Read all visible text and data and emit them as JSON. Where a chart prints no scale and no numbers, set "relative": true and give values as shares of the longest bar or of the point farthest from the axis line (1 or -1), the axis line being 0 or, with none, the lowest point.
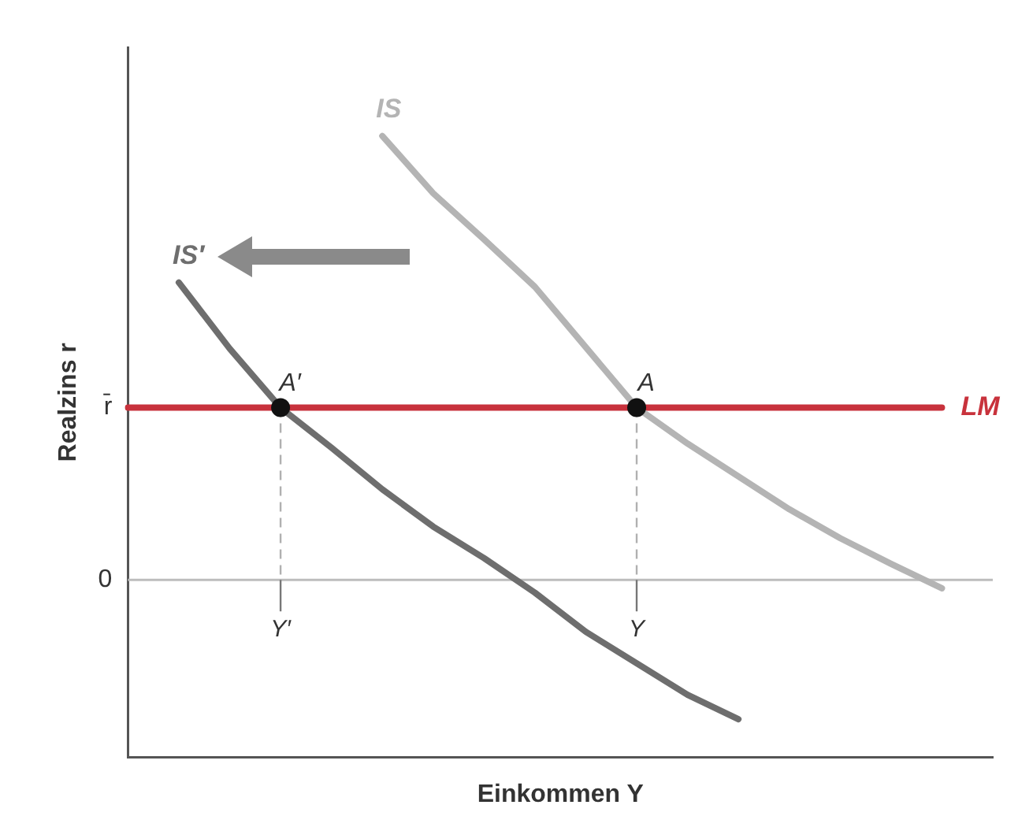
{
  "chart_data": {
    "type": "line",
    "relative": true,
    "xlabel": "Einkommen Y",
    "ylabel": "Realzins r",
    "categories": [
      null,
      null,
      null,
      null,
      null,
      null,
      null,
      null,
      null,
      null,
      null,
      null,
      null,
      null,
      null,
      null,
      null,
      null
    ],
    "annotations": [
      "r̄",
      "0",
      "A′",
      "A",
      "Y′",
      "Y"
    ],
    "legend": false,
    "marker": "none",
    "line_style": "solid",
    "series": [
      {
        "name": "IS",
        "color": "#b4b4b4",
        "values": [
          null,
          null,
          null,
          null,
          null,
          1,
          0.871,
          0.767,
          0.66,
          0.524,
          0.388,
          0.307,
          0.233,
          0.159,
          0.094,
          0.036,
          -0.019,
          null
        ]
      },
      {
        "name": "IS′",
        "color": "#6e6e6e",
        "values": [
          null,
          0.67,
          0.521,
          0.388,
          0.298,
          0.204,
          0.12,
          0.049,
          -0.029,
          -0.117,
          -0.188,
          -0.259,
          -0.314,
          null,
          null,
          null,
          null,
          null
        ]
      },
      {
        "name": "LM",
        "color": "#c8323c",
        "values": [
          0.388,
          0.388,
          0.388,
          0.388,
          0.388,
          0.388,
          0.388,
          0.388,
          0.388,
          0.388,
          0.388,
          0.388,
          0.388,
          0.388,
          0.388,
          0.388,
          0.388,
          null
        ]
      }
    ]
  }
}
